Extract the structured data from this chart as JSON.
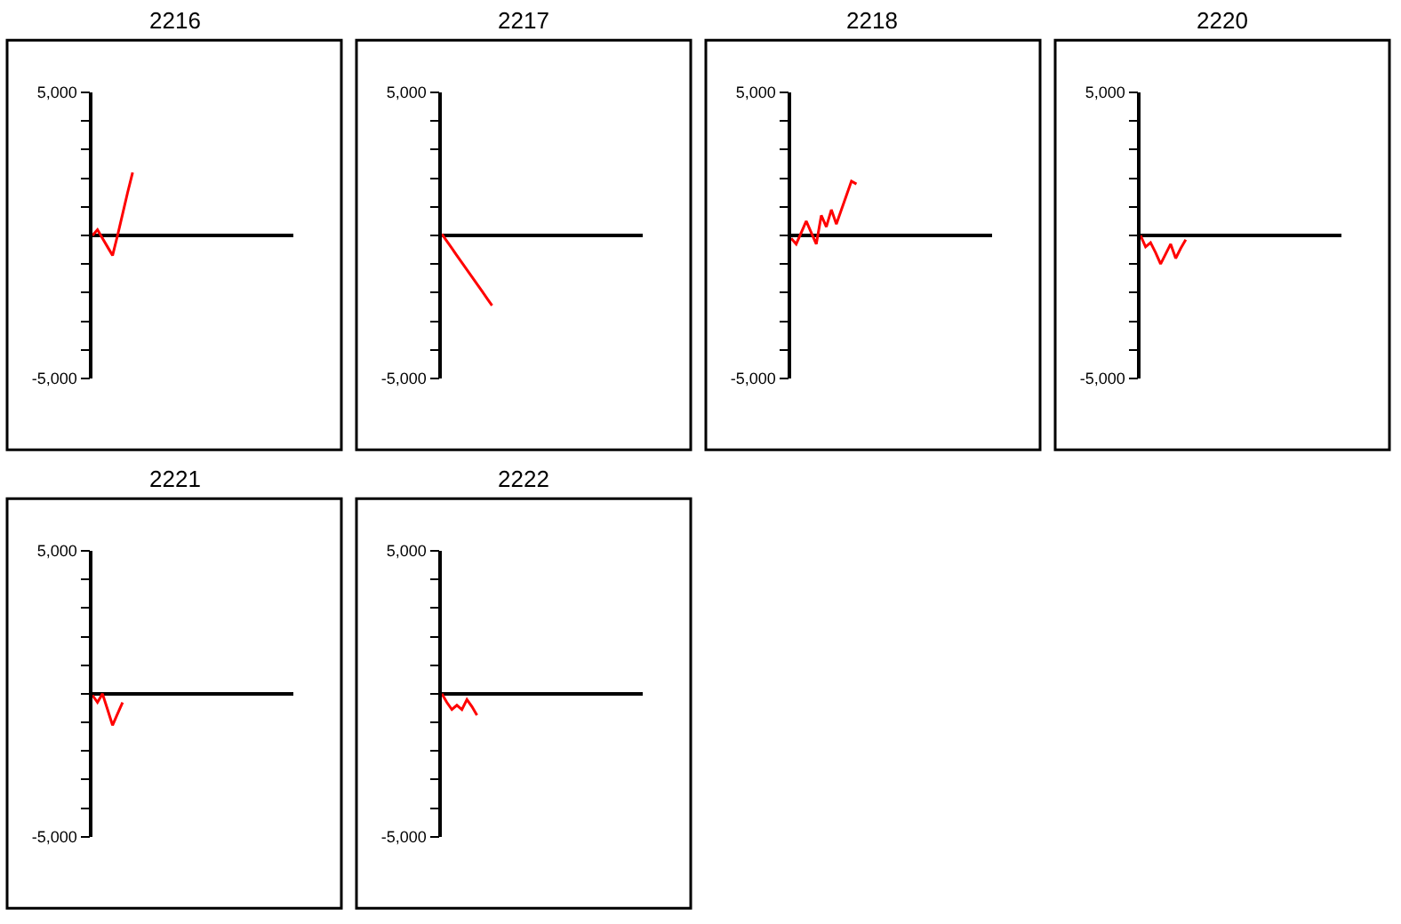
{
  "chart_data": [
    {
      "type": "line",
      "title": "2216",
      "categories": [
        null,
        null,
        null,
        null,
        null,
        null,
        null,
        null,
        null,
        null,
        null,
        null,
        null,
        null,
        null,
        null,
        null,
        null,
        null,
        null,
        null,
        null,
        null,
        null,
        null,
        null,
        null,
        null,
        null,
        null,
        null,
        null,
        null,
        null,
        null,
        null,
        null,
        null,
        null,
        null
      ],
      "series": [
        {
          "color": "#ff0000",
          "values": [
            0,
            200,
            -100,
            -400,
            -700,
            0,
            750,
            1500,
            2200,
            null,
            null,
            null,
            null,
            null,
            null,
            null,
            null,
            null,
            null,
            null,
            null,
            null,
            null,
            null,
            null,
            null,
            null,
            null,
            null,
            null,
            null,
            null,
            null,
            null,
            null,
            null,
            null,
            null,
            null,
            null
          ]
        }
      ],
      "ylim": [
        -5000,
        5000
      ],
      "yticks": [
        {
          "value": -5000,
          "label": "-5,000"
        },
        {
          "value": -4000,
          "label": null
        },
        {
          "value": -3000,
          "label": null
        },
        {
          "value": -2000,
          "label": null
        },
        {
          "value": -1000,
          "label": null
        },
        {
          "value": 0,
          "label": null
        },
        {
          "value": 1000,
          "label": null
        },
        {
          "value": 2000,
          "label": null
        },
        {
          "value": 3000,
          "label": null
        },
        {
          "value": 4000,
          "label": null
        },
        {
          "value": 5000,
          "label": "5,000"
        }
      ],
      "tick_labels": "y"
    },
    {
      "type": "line",
      "title": "2217",
      "categories": [
        null,
        null,
        null,
        null,
        null,
        null,
        null,
        null,
        null,
        null,
        null,
        null,
        null,
        null,
        null,
        null,
        null,
        null,
        null,
        null,
        null,
        null,
        null,
        null,
        null,
        null,
        null,
        null,
        null,
        null,
        null,
        null,
        null,
        null,
        null,
        null,
        null,
        null,
        null,
        null
      ],
      "series": [
        {
          "color": "#ff0000",
          "values": [
            50,
            -200,
            -450,
            -700,
            -950,
            -1200,
            -1450,
            -1700,
            -1950,
            -2200,
            -2450,
            null,
            null,
            null,
            null,
            null,
            null,
            null,
            null,
            null,
            null,
            null,
            null,
            null,
            null,
            null,
            null,
            null,
            null,
            null,
            null,
            null,
            null,
            null,
            null,
            null,
            null,
            null,
            null,
            null
          ]
        }
      ],
      "ylim": [
        -5000,
        5000
      ],
      "yticks": [
        {
          "value": -5000,
          "label": "-5,000"
        },
        {
          "value": -4000,
          "label": null
        },
        {
          "value": -3000,
          "label": null
        },
        {
          "value": -2000,
          "label": null
        },
        {
          "value": -1000,
          "label": null
        },
        {
          "value": 0,
          "label": null
        },
        {
          "value": 1000,
          "label": null
        },
        {
          "value": 2000,
          "label": null
        },
        {
          "value": 3000,
          "label": null
        },
        {
          "value": 4000,
          "label": null
        },
        {
          "value": 5000,
          "label": "5,000"
        }
      ],
      "tick_labels": "y"
    },
    {
      "type": "line",
      "title": "2218",
      "categories": [
        null,
        null,
        null,
        null,
        null,
        null,
        null,
        null,
        null,
        null,
        null,
        null,
        null,
        null,
        null,
        null,
        null,
        null,
        null,
        null,
        null,
        null,
        null,
        null,
        null,
        null,
        null,
        null,
        null,
        null,
        null,
        null,
        null,
        null,
        null,
        null,
        null,
        null,
        null,
        null
      ],
      "series": [
        {
          "color": "#ff0000",
          "values": [
            -100,
            -300,
            100,
            500,
            100,
            -300,
            700,
            300,
            900,
            400,
            900,
            1400,
            1900,
            1800,
            null,
            null,
            null,
            null,
            null,
            null,
            null,
            null,
            null,
            null,
            null,
            null,
            null,
            null,
            null,
            null,
            null,
            null,
            null,
            null,
            null,
            null,
            null,
            null,
            null,
            null
          ]
        }
      ],
      "ylim": [
        -5000,
        5000
      ],
      "yticks": [
        {
          "value": -5000,
          "label": "-5,000"
        },
        {
          "value": -4000,
          "label": null
        },
        {
          "value": -3000,
          "label": null
        },
        {
          "value": -2000,
          "label": null
        },
        {
          "value": -1000,
          "label": null
        },
        {
          "value": 0,
          "label": null
        },
        {
          "value": 1000,
          "label": null
        },
        {
          "value": 2000,
          "label": null
        },
        {
          "value": 3000,
          "label": null
        },
        {
          "value": 4000,
          "label": null
        },
        {
          "value": 5000,
          "label": "5,000"
        }
      ],
      "tick_labels": "y"
    },
    {
      "type": "line",
      "title": "2220",
      "categories": [
        null,
        null,
        null,
        null,
        null,
        null,
        null,
        null,
        null,
        null,
        null,
        null,
        null,
        null,
        null,
        null,
        null,
        null,
        null,
        null,
        null,
        null,
        null,
        null,
        null,
        null,
        null,
        null,
        null,
        null,
        null,
        null,
        null,
        null,
        null,
        null,
        null,
        null,
        null,
        null
      ],
      "series": [
        {
          "color": "#ff0000",
          "values": [
            0,
            -400,
            -250,
            -600,
            -1000,
            -650,
            -300,
            -800,
            -450,
            -150,
            null,
            null,
            null,
            null,
            null,
            null,
            null,
            null,
            null,
            null,
            null,
            null,
            null,
            null,
            null,
            null,
            null,
            null,
            null,
            null,
            null,
            null,
            null,
            null,
            null,
            null,
            null,
            null,
            null,
            null
          ]
        }
      ],
      "ylim": [
        -5000,
        5000
      ],
      "yticks": [
        {
          "value": -5000,
          "label": "-5,000"
        },
        {
          "value": -4000,
          "label": null
        },
        {
          "value": -3000,
          "label": null
        },
        {
          "value": -2000,
          "label": null
        },
        {
          "value": -1000,
          "label": null
        },
        {
          "value": 0,
          "label": null
        },
        {
          "value": 1000,
          "label": null
        },
        {
          "value": 2000,
          "label": null
        },
        {
          "value": 3000,
          "label": null
        },
        {
          "value": 4000,
          "label": null
        },
        {
          "value": 5000,
          "label": "5,000"
        }
      ],
      "tick_labels": "y"
    },
    {
      "type": "line",
      "title": "2221",
      "categories": [
        null,
        null,
        null,
        null,
        null,
        null,
        null,
        null,
        null,
        null,
        null,
        null,
        null,
        null,
        null,
        null,
        null,
        null,
        null,
        null,
        null,
        null,
        null,
        null,
        null,
        null,
        null,
        null,
        null,
        null,
        null,
        null,
        null,
        null,
        null,
        null,
        null,
        null,
        null,
        null
      ],
      "series": [
        {
          "color": "#ff0000",
          "values": [
            -50,
            -300,
            0,
            -550,
            -1100,
            -700,
            -300,
            null,
            null,
            null,
            null,
            null,
            null,
            null,
            null,
            null,
            null,
            null,
            null,
            null,
            null,
            null,
            null,
            null,
            null,
            null,
            null,
            null,
            null,
            null,
            null,
            null,
            null,
            null,
            null,
            null,
            null,
            null,
            null,
            null
          ]
        }
      ],
      "ylim": [
        -5000,
        5000
      ],
      "yticks": [
        {
          "value": -5000,
          "label": "-5,000"
        },
        {
          "value": -4000,
          "label": null
        },
        {
          "value": -3000,
          "label": null
        },
        {
          "value": -2000,
          "label": null
        },
        {
          "value": -1000,
          "label": null
        },
        {
          "value": 0,
          "label": null
        },
        {
          "value": 1000,
          "label": null
        },
        {
          "value": 2000,
          "label": null
        },
        {
          "value": 3000,
          "label": null
        },
        {
          "value": 4000,
          "label": null
        },
        {
          "value": 5000,
          "label": "5,000"
        }
      ],
      "tick_labels": "y"
    },
    {
      "type": "line",
      "title": "2222",
      "categories": [
        null,
        null,
        null,
        null,
        null,
        null,
        null,
        null,
        null,
        null,
        null,
        null,
        null,
        null,
        null,
        null,
        null,
        null,
        null,
        null,
        null,
        null,
        null,
        null,
        null,
        null,
        null,
        null,
        null,
        null,
        null,
        null,
        null,
        null,
        null,
        null,
        null,
        null,
        null,
        null
      ],
      "series": [
        {
          "color": "#ff0000",
          "values": [
            0,
            -300,
            -550,
            -400,
            -550,
            -200,
            -450,
            -750,
            null,
            null,
            null,
            null,
            null,
            null,
            null,
            null,
            null,
            null,
            null,
            null,
            null,
            null,
            null,
            null,
            null,
            null,
            null,
            null,
            null,
            null,
            null,
            null,
            null,
            null,
            null,
            null,
            null,
            null,
            null,
            null
          ]
        }
      ],
      "ylim": [
        -5000,
        5000
      ],
      "yticks": [
        {
          "value": -5000,
          "label": "-5,000"
        },
        {
          "value": -4000,
          "label": null
        },
        {
          "value": -3000,
          "label": null
        },
        {
          "value": -2000,
          "label": null
        },
        {
          "value": -1000,
          "label": null
        },
        {
          "value": 0,
          "label": null
        },
        {
          "value": 1000,
          "label": null
        },
        {
          "value": 2000,
          "label": null
        },
        {
          "value": 3000,
          "label": null
        },
        {
          "value": 4000,
          "label": null
        },
        {
          "value": 5000,
          "label": "5,000"
        }
      ],
      "tick_labels": "y"
    }
  ]
}
